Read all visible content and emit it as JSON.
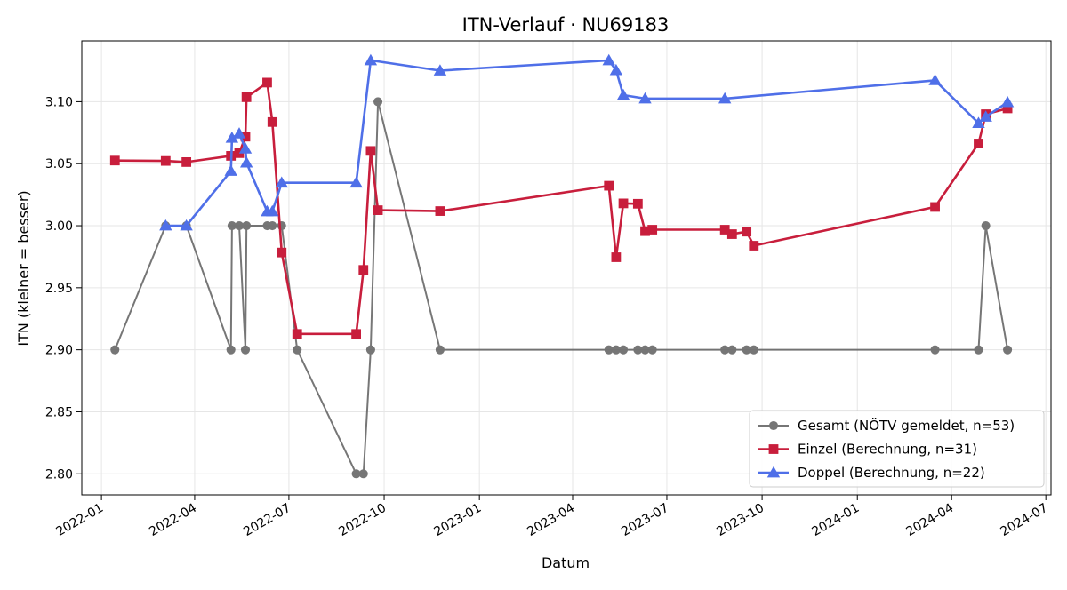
{
  "chart_data": {
    "type": "line",
    "title": "ITN-Verlauf · NU69183",
    "xlabel": "Datum",
    "ylabel": "ITN  (kleiner = besser)",
    "x_axis_type": "date",
    "xlim": [
      "2021-12-13",
      "2024-07-06"
    ],
    "ylim": [
      2.783,
      3.149
    ],
    "x_ticks": [
      {
        "date": "2022-01-01",
        "label": "2022-01"
      },
      {
        "date": "2022-04-01",
        "label": "2022-04"
      },
      {
        "date": "2022-07-01",
        "label": "2022-07"
      },
      {
        "date": "2022-10-01",
        "label": "2022-10"
      },
      {
        "date": "2023-01-01",
        "label": "2023-01"
      },
      {
        "date": "2023-04-01",
        "label": "2023-04"
      },
      {
        "date": "2023-07-01",
        "label": "2023-07"
      },
      {
        "date": "2023-10-01",
        "label": "2023-10"
      },
      {
        "date": "2024-01-01",
        "label": "2024-01"
      },
      {
        "date": "2024-04-01",
        "label": "2024-04"
      },
      {
        "date": "2024-07-01",
        "label": "2024-07"
      }
    ],
    "y_ticks": [
      {
        "value": 2.8,
        "label": "2.80"
      },
      {
        "value": 2.85,
        "label": "2.85"
      },
      {
        "value": 2.9,
        "label": "2.90"
      },
      {
        "value": 2.95,
        "label": "2.95"
      },
      {
        "value": 3.0,
        "label": "3.00"
      },
      {
        "value": 3.05,
        "label": "3.05"
      },
      {
        "value": 3.1,
        "label": "3.10"
      }
    ],
    "grid": true,
    "legend_position": "bottom-right",
    "series": [
      {
        "name": "Gesamt (NÖTV gemeldet, n=53)",
        "color": "#555555",
        "marker": "circle",
        "points": [
          [
            "2022-01-14",
            2.9
          ],
          [
            "2022-03-04",
            3.0
          ],
          [
            "2022-03-24",
            3.0
          ],
          [
            "2022-05-06",
            2.9
          ],
          [
            "2022-05-07",
            3.0
          ],
          [
            "2022-05-14",
            3.0
          ],
          [
            "2022-05-20",
            2.9
          ],
          [
            "2022-05-21",
            3.0
          ],
          [
            "2022-06-10",
            3.0
          ],
          [
            "2022-06-15",
            3.0
          ],
          [
            "2022-06-24",
            3.0
          ],
          [
            "2022-07-09",
            2.9
          ],
          [
            "2022-09-04",
            2.8
          ],
          [
            "2022-09-11",
            2.8
          ],
          [
            "2022-09-18",
            2.9
          ],
          [
            "2022-09-25",
            3.1
          ],
          [
            "2022-11-24",
            2.9
          ],
          [
            "2023-05-06",
            2.9
          ],
          [
            "2023-05-13",
            2.9
          ],
          [
            "2023-05-20",
            2.9
          ],
          [
            "2023-06-03",
            2.9
          ],
          [
            "2023-06-10",
            2.9
          ],
          [
            "2023-06-17",
            2.9
          ],
          [
            "2023-08-26",
            2.9
          ],
          [
            "2023-09-02",
            2.9
          ],
          [
            "2023-09-16",
            2.9
          ],
          [
            "2023-09-23",
            2.9
          ],
          [
            "2024-03-16",
            2.9
          ],
          [
            "2024-04-27",
            2.9
          ],
          [
            "2024-05-04",
            3.0
          ],
          [
            "2024-05-25",
            2.9
          ]
        ]
      },
      {
        "name": "Einzel (Berechnung, n=31)",
        "color": "#c81e3c",
        "marker": "square",
        "points": [
          [
            "2022-01-14",
            3.0525
          ],
          [
            "2022-03-04",
            3.0522
          ],
          [
            "2022-03-24",
            3.0513
          ],
          [
            "2022-05-06",
            3.0563
          ],
          [
            "2022-05-14",
            3.0585
          ],
          [
            "2022-05-20",
            3.0718
          ],
          [
            "2022-05-21",
            3.1036
          ],
          [
            "2022-06-10",
            3.1154
          ],
          [
            "2022-06-15",
            3.0836
          ],
          [
            "2022-06-24",
            2.9784
          ],
          [
            "2022-07-09",
            2.9128
          ],
          [
            "2022-09-04",
            2.9128
          ],
          [
            "2022-09-11",
            2.9644
          ],
          [
            "2022-09-18",
            3.0603
          ],
          [
            "2022-09-25",
            3.0125
          ],
          [
            "2022-11-24",
            3.0118
          ],
          [
            "2023-05-06",
            3.0322
          ],
          [
            "2023-05-13",
            2.9746
          ],
          [
            "2023-05-20",
            3.018
          ],
          [
            "2023-06-03",
            3.0177
          ],
          [
            "2023-06-10",
            2.9956
          ],
          [
            "2023-06-17",
            2.9968
          ],
          [
            "2023-08-26",
            2.9968
          ],
          [
            "2023-09-02",
            2.9932
          ],
          [
            "2023-09-16",
            2.9952
          ],
          [
            "2023-09-23",
            2.9839
          ],
          [
            "2024-03-16",
            3.0151
          ],
          [
            "2024-04-27",
            3.0663
          ],
          [
            "2024-05-04",
            3.0899
          ],
          [
            "2024-05-25",
            3.0946
          ]
        ]
      },
      {
        "name": "Doppel (Berechnung, n=22)",
        "color": "#4f6fe8",
        "marker": "triangle",
        "points": [
          [
            "2022-03-04",
            3.0
          ],
          [
            "2022-03-24",
            3.0
          ],
          [
            "2022-05-06",
            3.0441
          ],
          [
            "2022-05-07",
            3.0708
          ],
          [
            "2022-05-14",
            3.0743
          ],
          [
            "2022-05-20",
            3.0621
          ],
          [
            "2022-05-21",
            3.0508
          ],
          [
            "2022-06-10",
            3.0115
          ],
          [
            "2022-06-15",
            3.0115
          ],
          [
            "2022-06-24",
            3.0346
          ],
          [
            "2022-09-04",
            3.0346
          ],
          [
            "2022-09-18",
            3.1333
          ],
          [
            "2022-11-24",
            3.125
          ],
          [
            "2023-05-06",
            3.1333
          ],
          [
            "2023-05-13",
            3.1253
          ],
          [
            "2023-05-20",
            3.1053
          ],
          [
            "2023-06-10",
            3.1025
          ],
          [
            "2023-08-26",
            3.1025
          ],
          [
            "2024-03-16",
            3.1172
          ],
          [
            "2024-04-27",
            3.0827
          ],
          [
            "2024-05-04",
            3.0878
          ],
          [
            "2024-05-25",
            3.0995
          ]
        ]
      }
    ]
  }
}
